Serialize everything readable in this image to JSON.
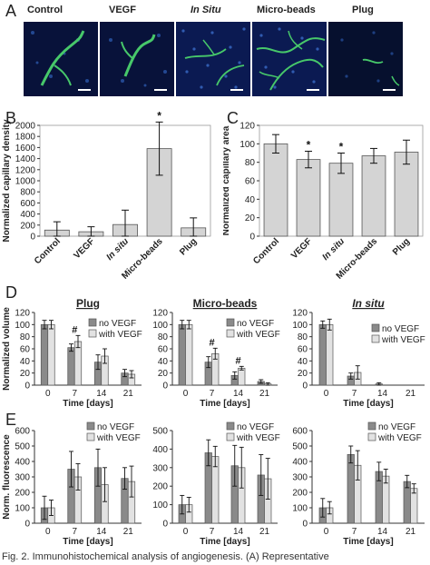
{
  "panel_labels": [
    "A",
    "B",
    "C",
    "D",
    "E"
  ],
  "panelA": {
    "images": [
      {
        "label": "Control",
        "italic": false
      },
      {
        "label": "VEGF",
        "italic": false
      },
      {
        "label": "In Situ",
        "italic": true
      },
      {
        "label": "Micro-beads",
        "italic": false
      },
      {
        "label": "Plug",
        "italic": false
      }
    ]
  },
  "caption": "Fig. 2.  Immunohistochemical analysis of angiogenesis. (A) Representative",
  "chart_data": [
    {
      "id": "B",
      "type": "bar",
      "categories": [
        "Control",
        "VEGF",
        "In situ",
        "Micro-beads",
        "Plug"
      ],
      "italic_categories": [
        false,
        false,
        true,
        false,
        false
      ],
      "values": [
        110,
        80,
        210,
        1580,
        150
      ],
      "errors": [
        150,
        90,
        260,
        480,
        180
      ],
      "significance": [
        "",
        "",
        "",
        "*",
        ""
      ],
      "ylabel": "Normalized capillary density",
      "ylim": [
        0,
        2000
      ],
      "yticks": [
        0,
        200,
        400,
        600,
        800,
        1000,
        1200,
        1400,
        1600,
        1800,
        2000
      ]
    },
    {
      "id": "C",
      "type": "bar",
      "categories": [
        "Control",
        "VEGF",
        "In situ",
        "Micro-beads",
        "Plug"
      ],
      "italic_categories": [
        false,
        false,
        true,
        false,
        false
      ],
      "values": [
        100,
        83,
        79,
        87,
        91
      ],
      "errors": [
        10,
        9,
        11,
        8,
        13
      ],
      "significance": [
        "",
        "*",
        "*",
        "",
        ""
      ],
      "ylabel": "Normalized capillary area",
      "ylim": [
        0,
        120
      ],
      "yticks": [
        0,
        20,
        40,
        60,
        80,
        100,
        120
      ]
    },
    {
      "id": "D1",
      "type": "bar",
      "title": "Plug",
      "title_italic": false,
      "categories": [
        "0",
        "7",
        "14",
        "21"
      ],
      "xlabel": "Time [days]",
      "ylabel": "Normalized volume",
      "ylim": [
        0,
        120
      ],
      "yticks": [
        0,
        20,
        40,
        60,
        80,
        100,
        120
      ],
      "series": [
        {
          "name": "no VEGF",
          "values": [
            100,
            62,
            38,
            20
          ],
          "errors": [
            7,
            6,
            12,
            6
          ]
        },
        {
          "name": "with VEGF",
          "values": [
            100,
            72,
            48,
            18
          ],
          "errors": [
            7,
            10,
            12,
            6
          ]
        }
      ],
      "significance": [
        "",
        "#",
        "",
        ""
      ]
    },
    {
      "id": "D2",
      "type": "bar",
      "title": "Micro-beads",
      "title_italic": false,
      "categories": [
        "0",
        "7",
        "14",
        "21"
      ],
      "xlabel": "Time [days]",
      "ylabel": "",
      "ylim": [
        0,
        120
      ],
      "yticks": [
        0,
        20,
        40,
        60,
        80,
        100,
        120
      ],
      "series": [
        {
          "name": "no VEGF",
          "values": [
            100,
            38,
            16,
            6
          ],
          "errors": [
            7,
            9,
            6,
            3
          ]
        },
        {
          "name": "with VEGF",
          "values": [
            100,
            52,
            28,
            2
          ],
          "errors": [
            7,
            9,
            3,
            2
          ]
        }
      ],
      "significance": [
        "",
        "#",
        "#",
        ""
      ]
    },
    {
      "id": "D3",
      "type": "bar",
      "title": "In situ",
      "title_italic": true,
      "categories": [
        "0",
        "7",
        "14",
        "21"
      ],
      "xlabel": "Time [days]",
      "ylabel": "",
      "ylim": [
        0,
        120
      ],
      "yticks": [
        0,
        20,
        40,
        60,
        80,
        100,
        120
      ],
      "series": [
        {
          "name": "no VEGF",
          "values": [
            100,
            15,
            2,
            0
          ],
          "errors": [
            6,
            5,
            2,
            0
          ]
        },
        {
          "name": "with VEGF",
          "values": [
            100,
            21,
            0,
            0
          ],
          "errors": [
            9,
            11,
            0,
            0
          ]
        }
      ],
      "significance": [
        "",
        "",
        "",
        ""
      ]
    },
    {
      "id": "E1",
      "type": "bar",
      "categories": [
        "0",
        "7",
        "14",
        "21"
      ],
      "xlabel": "Time [days]",
      "ylabel": "Norm. fluorescence",
      "ylim": [
        0,
        600
      ],
      "yticks": [
        0,
        100,
        200,
        300,
        400,
        500,
        600
      ],
      "series": [
        {
          "name": "no VEGF",
          "values": [
            100,
            350,
            360,
            290
          ],
          "errors": [
            75,
            115,
            120,
            70
          ]
        },
        {
          "name": "with VEGF",
          "values": [
            100,
            300,
            250,
            270
          ],
          "errors": [
            50,
            85,
            110,
            100
          ]
        }
      ]
    },
    {
      "id": "E2",
      "type": "bar",
      "categories": [
        "0",
        "7",
        "14",
        "21"
      ],
      "xlabel": "Time [days]",
      "ylabel": "",
      "ylim": [
        0,
        500
      ],
      "yticks": [
        0,
        100,
        200,
        300,
        400,
        500
      ],
      "series": [
        {
          "name": "no VEGF",
          "values": [
            100,
            380,
            310,
            260
          ],
          "errors": [
            50,
            70,
            110,
            110
          ]
        },
        {
          "name": "with VEGF",
          "values": [
            100,
            360,
            300,
            240
          ],
          "errors": [
            40,
            55,
            110,
            110
          ]
        }
      ]
    },
    {
      "id": "E3",
      "type": "bar",
      "categories": [
        "0",
        "7",
        "14",
        "21"
      ],
      "xlabel": "Time [days]",
      "ylabel": "",
      "ylim": [
        0,
        600
      ],
      "yticks": [
        0,
        100,
        200,
        300,
        400,
        500,
        600
      ],
      "series": [
        {
          "name": "no VEGF",
          "values": [
            100,
            445,
            335,
            270
          ],
          "errors": [
            60,
            55,
            60,
            40
          ]
        },
        {
          "name": "with VEGF",
          "values": [
            100,
            375,
            305,
            225
          ],
          "errors": [
            40,
            95,
            45,
            30
          ]
        }
      ]
    }
  ],
  "colors": {
    "bar_single": "#d4d4d4",
    "bar_no_vegf": "#8a8a8a",
    "bar_with_vegf": "#e2e2e2",
    "outline": "#555555",
    "micro_bg": "#08123a",
    "micro_vessel": "#47c86a",
    "micro_nuclei": "#2f5fb8"
  }
}
